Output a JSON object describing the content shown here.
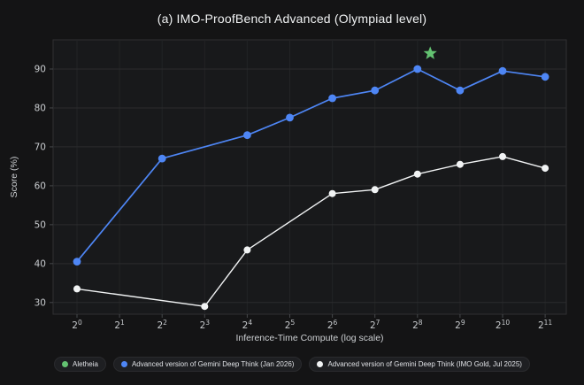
{
  "title": "(a) IMO-ProofBench Advanced (Olympiad level)",
  "colors": {
    "background": "#141415",
    "plot_bg": "#18191b",
    "grid": "#2b2c2e",
    "grid_minor": "#222325",
    "plot_border": "#2f3032",
    "tick": "#45474a",
    "axis_text": "#c7cacd",
    "title_text": "#f1f3f4",
    "legend_text": "#dfe1e5",
    "legend_pill": "#1e1f22",
    "blue": "#4e86f5",
    "white": "#f1f3f4",
    "green": "#63c271"
  },
  "chart_data": {
    "type": "line",
    "title": "(a) IMO-ProofBench Advanced (Olympiad level)",
    "xlabel": "Inference-Time Compute (log scale)",
    "ylabel": "Score (%)",
    "x_scale": "log2",
    "x_tick_base": "2",
    "x_tick_exponents": [
      0,
      1,
      2,
      3,
      4,
      5,
      6,
      7,
      8,
      9,
      10,
      11
    ],
    "y_ticks": [
      30,
      40,
      50,
      60,
      70,
      80,
      90
    ],
    "ylim": [
      27,
      97.5
    ],
    "grid": true,
    "legend_position": "bottom",
    "series": [
      {
        "name": "Advanced version of Gemini Deep Think (Jan 2026)",
        "color_key": "blue",
        "marker": "circle",
        "points": [
          [
            0,
            40.5
          ],
          [
            2,
            67
          ],
          [
            4,
            73
          ],
          [
            5,
            77.5
          ],
          [
            6,
            82.5
          ],
          [
            7,
            84.5
          ],
          [
            8,
            90
          ],
          [
            9,
            84.5
          ],
          [
            10,
            89.5
          ],
          [
            11,
            88
          ]
        ]
      },
      {
        "name": "Advanced version of Gemini Deep Think (IMO Gold, Jul 2025)",
        "color_key": "white",
        "marker": "circle",
        "points": [
          [
            0,
            33.5
          ],
          [
            3,
            29
          ],
          [
            4,
            43.5
          ],
          [
            6,
            58
          ],
          [
            7,
            59
          ],
          [
            8,
            63
          ],
          [
            9,
            65.5
          ],
          [
            10,
            67.5
          ],
          [
            11,
            64.5
          ]
        ]
      },
      {
        "name": "Aletheia",
        "color_key": "green",
        "marker": "star",
        "points": [
          [
            8.3,
            94
          ]
        ]
      }
    ],
    "legend": [
      {
        "label": "Aletheia",
        "color_key": "green"
      },
      {
        "label": "Advanced version of Gemini Deep Think (Jan 2026)",
        "color_key": "blue"
      },
      {
        "label": "Advanced version of Gemini Deep Think (IMO Gold, Jul 2025)",
        "color_key": "white"
      }
    ]
  }
}
